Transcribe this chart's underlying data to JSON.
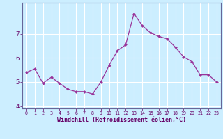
{
  "x": [
    0,
    1,
    2,
    3,
    4,
    5,
    6,
    7,
    8,
    9,
    10,
    11,
    12,
    13,
    14,
    15,
    16,
    17,
    18,
    19,
    20,
    21,
    22,
    23
  ],
  "y": [
    5.4,
    5.55,
    4.95,
    5.2,
    4.95,
    4.7,
    4.6,
    4.6,
    4.5,
    5.0,
    5.7,
    6.3,
    6.55,
    7.85,
    7.35,
    7.05,
    6.9,
    6.8,
    6.45,
    6.05,
    5.85,
    5.3,
    5.3,
    5.0
  ],
  "xlabel": "Windchill (Refroidissement éolien,°C)",
  "xlim": [
    -0.5,
    23.5
  ],
  "ylim": [
    3.9,
    8.3
  ],
  "yticks": [
    4,
    5,
    6,
    7
  ],
  "xticks": [
    0,
    1,
    2,
    3,
    4,
    5,
    6,
    7,
    8,
    9,
    10,
    11,
    12,
    13,
    14,
    15,
    16,
    17,
    18,
    19,
    20,
    21,
    22,
    23
  ],
  "line_color": "#993399",
  "marker_color": "#993399",
  "bg_color": "#cceeff",
  "grid_color": "#ffffff",
  "spine_color": "#666699",
  "tick_color": "#660066",
  "label_color": "#660066"
}
